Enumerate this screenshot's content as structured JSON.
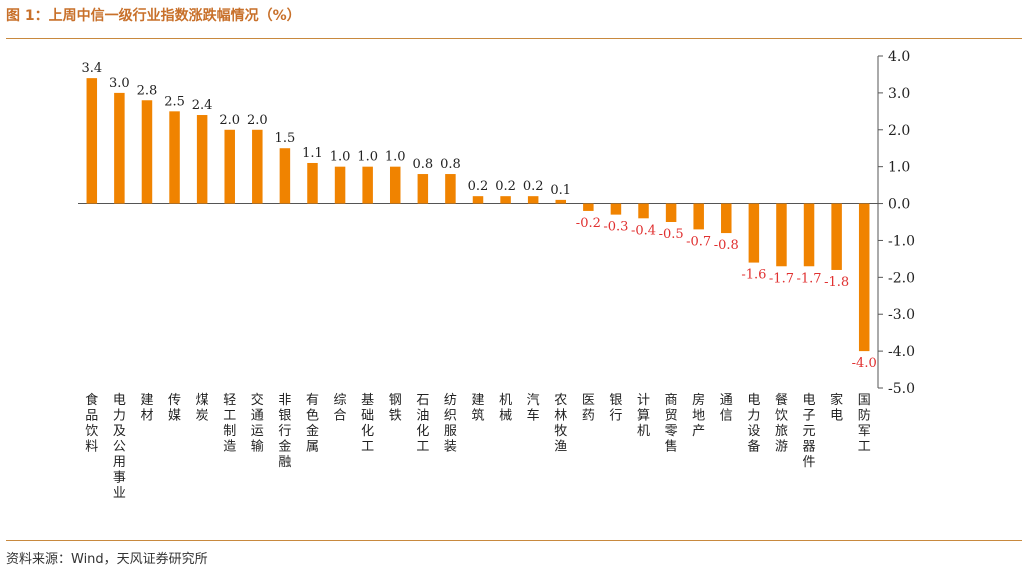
{
  "title": "图 1：上周中信一级行业指数涨跌幅情况（%）",
  "source": "资料来源：Wind，天风证券研究所",
  "colors": {
    "bar": "#f08300",
    "positive_label": "#222222",
    "negative_label": "#e03030",
    "accent": "#c8702a"
  },
  "chart_data": {
    "type": "bar",
    "title": "上周中信一级行业指数涨跌幅情况（%）",
    "xlabel": "",
    "ylabel": "",
    "ylim": [
      -5.0,
      4.0
    ],
    "yticks": [
      4.0,
      3.0,
      2.0,
      1.0,
      0.0,
      -1.0,
      -2.0,
      -3.0,
      -4.0,
      -5.0
    ],
    "ytick_labels": [
      "4.0",
      "3.0",
      "2.0",
      "1.0",
      "0.0",
      "-1.0",
      "-2.0",
      "-3.0",
      "-4.0",
      "-5.0"
    ],
    "y_axis_side": "right",
    "grid": false,
    "categories": [
      "食品饮料",
      "电力及公用事业",
      "建材",
      "传媒",
      "煤炭",
      "轻工制造",
      "交通运输",
      "非银行金融",
      "有色金属",
      "综合",
      "基础化工",
      "钢铁",
      "石油化工",
      "纺织服装",
      "建筑",
      "机械",
      "汽车",
      "农林牧渔",
      "医药",
      "银行",
      "计算机",
      "商贸零售",
      "房地产",
      "通信",
      "电力设备",
      "餐饮旅游",
      "电子元器件",
      "家电",
      "国防军工"
    ],
    "values": [
      3.4,
      3.0,
      2.8,
      2.5,
      2.4,
      2.0,
      2.0,
      1.5,
      1.1,
      1.0,
      1.0,
      1.0,
      0.8,
      0.8,
      0.2,
      0.2,
      0.2,
      0.1,
      -0.2,
      -0.3,
      -0.4,
      -0.5,
      -0.7,
      -0.8,
      -1.6,
      -1.7,
      -1.7,
      -1.8,
      -4.0
    ],
    "data_labels": [
      "3.4",
      "3.0",
      "2.8",
      "2.5",
      "2.4",
      "2.0",
      "2.0",
      "1.5",
      "1.1",
      "1.0",
      "1.0",
      "1.0",
      "0.8",
      "0.8",
      "0.2",
      "0.2",
      "0.2",
      "0.1",
      "-0.2",
      "-0.3",
      "-0.4",
      "-0.5",
      "-0.7",
      "-0.8",
      "-1.6",
      "-1.7",
      "-1.7",
      "-1.8",
      "-4.0"
    ]
  }
}
